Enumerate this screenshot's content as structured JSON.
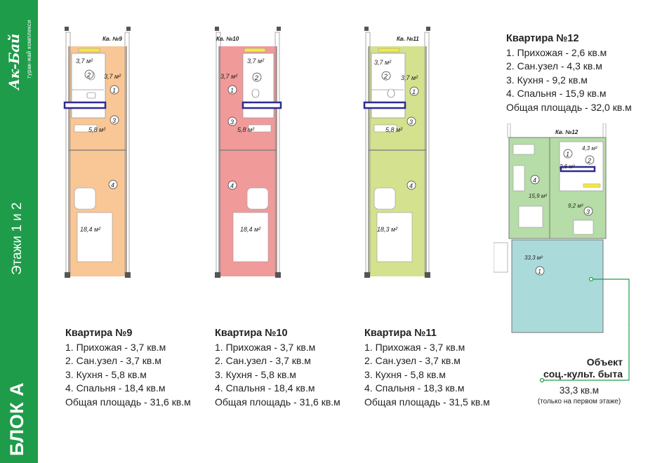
{
  "sidebar": {
    "logo": "Ак-Бай",
    "logo_sub": "турак-жай комплекси",
    "floors": "Этажи 1 и 2",
    "block": "БЛОК А"
  },
  "apartments": [
    {
      "plan_label": "Кв. №9",
      "fill": "#f9c695",
      "rooms": [
        {
          "no": "1",
          "area": "3,7 м²"
        },
        {
          "no": "2",
          "area": "3,7 м²"
        },
        {
          "no": "3",
          "area": "5,8 м²"
        },
        {
          "no": "4",
          "area": "18,4 м²"
        }
      ],
      "title": "Квартира №9",
      "lines": [
        "1. Прихожая - 3,7 кв.м",
        "2. Сан.узел - 3,7 кв.м",
        "3. Кухня - 5,8 кв.м",
        "4. Спальня - 18,4 кв.м",
        "Общая площадь - 31,6 кв.м"
      ]
    },
    {
      "plan_label": "Кв. №10",
      "fill": "#f19a9a",
      "rooms": [
        {
          "no": "1",
          "area": "3,7 м²"
        },
        {
          "no": "2",
          "area": "3,7 м²"
        },
        {
          "no": "3",
          "area": "5,8 м²"
        },
        {
          "no": "4",
          "area": "18,4 м²"
        }
      ],
      "title": "Квартира №10",
      "lines": [
        "1. Прихожая - 3,7 кв.м",
        "2. Сан.узел - 3,7 кв.м",
        "3. Кухня - 5,8 кв.м",
        "4. Спальня - 18,4 кв.м",
        "Общая площадь - 31,6 кв.м"
      ]
    },
    {
      "plan_label": "Кв. №11",
      "fill": "#d4e18e",
      "rooms": [
        {
          "no": "1",
          "area": "3,7 м²"
        },
        {
          "no": "2",
          "area": "3,7 м²"
        },
        {
          "no": "3",
          "area": "5,8 м²"
        },
        {
          "no": "4",
          "area": "18,3 м²"
        }
      ],
      "title": "Квартира №11",
      "lines": [
        "1. Прихожая - 3,7 кв.м",
        "2. Сан.узел - 3,7 кв.м",
        "3. Кухня - 5,8 кв.м",
        "4. Спальня - 18,3 кв.м",
        "Общая площадь - 31,5 кв.м"
      ]
    },
    {
      "plan_label": "Кв. №12",
      "fill": "#b6dca7",
      "rooms": [
        {
          "no": "1",
          "area": "2,6 м²"
        },
        {
          "no": "2",
          "area": "4,3 м²"
        },
        {
          "no": "3",
          "area": "9,2 м²"
        },
        {
          "no": "4",
          "area": "15,9 м²"
        }
      ],
      "title": "Квартира №12",
      "lines": [
        "1. Прихожая - 2,6 кв.м",
        "2. Сан.узел - 4,3 кв.м",
        "3. Кухня - 9,2 кв.м",
        "4. Спальня - 15,9 кв.м",
        "Общая площадь - 32,0 кв.м"
      ]
    }
  ],
  "object": {
    "room_no": "1",
    "room_area": "33,3 м²",
    "fill": "#abdadb",
    "title_line1": "Объект",
    "title_line2": "соц.-культ. быта",
    "area": "33,3 кв.м",
    "note": "(только на первом этаже)"
  },
  "colors": {
    "brand_green": "#1e9c49",
    "callout_green": "#1e9c49",
    "window_blue": "#2e2b8f",
    "window_yellow": "#f3ea43"
  }
}
